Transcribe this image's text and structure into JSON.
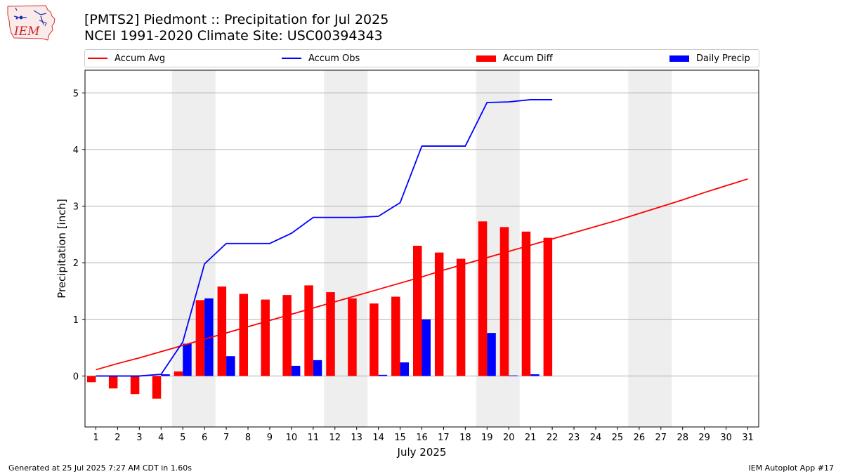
{
  "header": {
    "title": "[PMTS2] Piedmont :: Precipitation for Jul 2025",
    "subtitle": "NCEI 1991-2020 Climate Site: USC00394343"
  },
  "logo": {
    "text": "IEM",
    "icon": "iem-iowa-logo-icon"
  },
  "footer": {
    "left": "Generated at 25 Jul 2025 7:27 AM CDT in 1.60s",
    "right": "IEM Autoplot App #17"
  },
  "colors": {
    "avg": "#ff0000",
    "obs": "#0000ff",
    "diff": "#ff0000",
    "daily": "#0000ff",
    "weekend": "#eeeeee",
    "grid": "#b0b0b0"
  },
  "chart_data": {
    "type": "bar",
    "xlabel": "July 2025",
    "ylabel": "Precipitation [inch]",
    "xlim": [
      0.5,
      31.5
    ],
    "ylim": [
      -0.9,
      5.4
    ],
    "yticks": [
      0,
      1,
      2,
      3,
      4,
      5
    ],
    "grid": "horizontal",
    "legend_position": "top",
    "days": [
      1,
      2,
      3,
      4,
      5,
      6,
      7,
      8,
      9,
      10,
      11,
      12,
      13,
      14,
      15,
      16,
      17,
      18,
      19,
      20,
      21,
      22,
      23,
      24,
      25,
      26,
      27,
      28,
      29,
      30,
      31
    ],
    "weekend_spans": [
      [
        4.5,
        6.5
      ],
      [
        11.5,
        13.5
      ],
      [
        18.5,
        20.5
      ],
      [
        25.5,
        27.5
      ]
    ],
    "series": [
      {
        "name": "Accum Avg",
        "type": "line",
        "values": [
          0.11,
          0.22,
          0.32,
          0.43,
          0.54,
          0.65,
          0.76,
          0.87,
          0.98,
          1.09,
          1.2,
          1.31,
          1.42,
          1.53,
          1.64,
          1.75,
          1.87,
          1.98,
          2.09,
          2.2,
          2.31,
          2.42,
          2.53,
          2.64,
          2.75,
          2.87,
          2.99,
          3.11,
          3.24,
          3.36,
          3.48
        ]
      },
      {
        "name": "Accum Obs",
        "type": "line",
        "values": [
          0.0,
          0.0,
          0.0,
          0.03,
          0.6,
          1.98,
          2.34,
          2.34,
          2.34,
          2.52,
          2.8,
          2.8,
          2.8,
          2.82,
          3.06,
          4.06,
          4.06,
          4.06,
          4.83,
          4.84,
          4.88,
          4.88
        ]
      },
      {
        "name": "Accum Diff",
        "type": "bar",
        "values": [
          -0.11,
          -0.22,
          -0.32,
          -0.4,
          0.08,
          1.34,
          1.58,
          1.45,
          1.35,
          1.43,
          1.6,
          1.48,
          1.37,
          1.28,
          1.4,
          2.3,
          2.18,
          2.07,
          2.73,
          2.63,
          2.55,
          2.44
        ]
      },
      {
        "name": "Daily Precip",
        "type": "bar",
        "values": [
          0.0,
          0.0,
          0.0,
          0.03,
          0.57,
          1.37,
          0.35,
          0.0,
          0.0,
          0.18,
          0.28,
          0.0,
          0.0,
          0.02,
          0.24,
          1.0,
          0.0,
          0.0,
          0.76,
          0.01,
          0.03,
          0.0
        ]
      }
    ]
  }
}
